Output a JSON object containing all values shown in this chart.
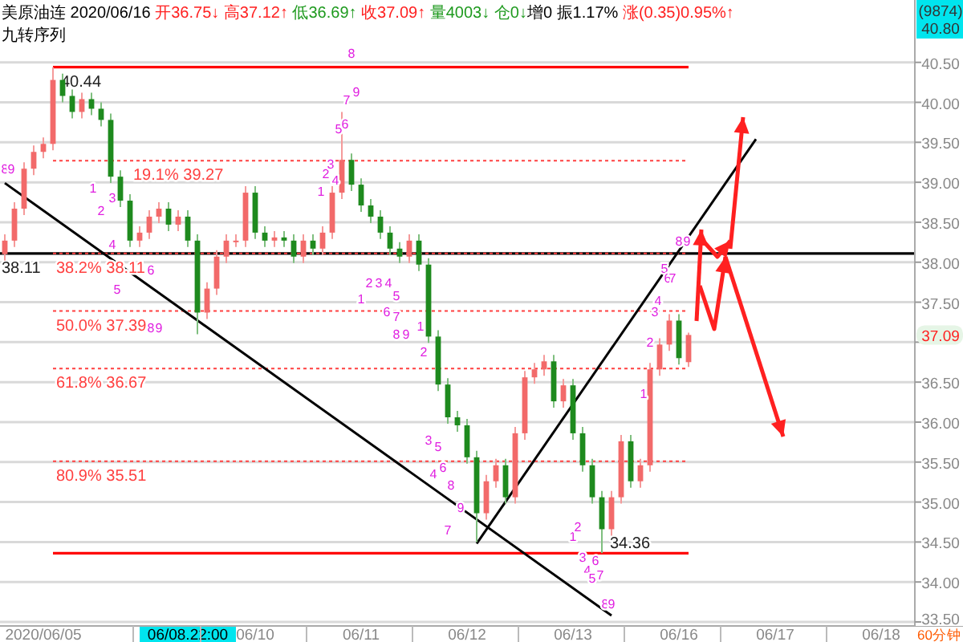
{
  "chart_data": {
    "type": "candlestick",
    "title": "美原油连",
    "subtitle": "九转序列",
    "grid": "y",
    "categories": [
      null,
      null,
      null,
      null,
      "2020/06/05",
      null,
      null,
      null,
      null,
      null,
      null,
      null,
      null,
      null,
      null,
      null,
      null,
      null,
      null,
      "06/08.22:00",
      null,
      null,
      null,
      null,
      null,
      null,
      "06/10",
      null,
      null,
      null,
      null,
      null,
      null,
      null,
      null,
      null,
      null,
      "06/11",
      null,
      null,
      null,
      null,
      null,
      null,
      null,
      null,
      null,
      null,
      "06/12",
      null,
      null,
      null,
      null,
      null,
      null,
      null,
      null,
      null,
      null,
      "06/13",
      null,
      null,
      null,
      null,
      null,
      null,
      null,
      null,
      null,
      null,
      "06/16",
      null,
      null,
      null,
      null,
      null,
      null,
      null,
      null,
      null,
      "06/17",
      null,
      null,
      null,
      null,
      null,
      null,
      null,
      null,
      null,
      null,
      "06/18",
      null,
      null,
      null
    ],
    "ohlc": [
      [
        38.1,
        38.35,
        38.02,
        38.27
      ],
      [
        38.27,
        38.75,
        38.19,
        38.67
      ],
      [
        38.67,
        39.25,
        38.59,
        39.17
      ],
      [
        39.17,
        39.46,
        39.09,
        39.38
      ],
      [
        39.38,
        39.56,
        39.3,
        39.48
      ],
      [
        39.48,
        40.44,
        39.4,
        40.28
      ],
      [
        40.28,
        40.36,
        40.0,
        40.08
      ],
      [
        40.08,
        40.16,
        39.8,
        39.88
      ],
      [
        39.88,
        40.12,
        39.8,
        40.04
      ],
      [
        40.04,
        40.12,
        39.84,
        39.92
      ],
      [
        39.92,
        40.0,
        39.7,
        39.78
      ],
      [
        39.78,
        39.86,
        38.99,
        39.07
      ],
      [
        39.07,
        39.15,
        38.69,
        38.77
      ],
      [
        38.77,
        38.85,
        38.19,
        38.27
      ],
      [
        38.27,
        38.45,
        38.19,
        38.37
      ],
      [
        38.37,
        38.65,
        38.29,
        38.57
      ],
      [
        38.57,
        38.75,
        38.49,
        38.67
      ],
      [
        38.67,
        38.75,
        38.39,
        38.47
      ],
      [
        38.47,
        38.65,
        38.39,
        38.57
      ],
      [
        38.57,
        38.65,
        38.19,
        38.27
      ],
      [
        38.27,
        38.35,
        37.1,
        37.37
      ],
      [
        37.37,
        37.75,
        37.29,
        37.67
      ],
      [
        37.67,
        38.15,
        37.59,
        38.07
      ],
      [
        38.07,
        38.35,
        37.99,
        38.27
      ],
      [
        38.27,
        38.35,
        38.19,
        38.27
      ],
      [
        38.27,
        38.95,
        38.19,
        38.87
      ],
      [
        38.87,
        38.95,
        38.29,
        38.37
      ],
      [
        38.37,
        38.45,
        38.19,
        38.27
      ],
      [
        38.27,
        38.39,
        38.19,
        38.31
      ],
      [
        38.31,
        38.39,
        38.19,
        38.27
      ],
      [
        38.27,
        38.35,
        37.99,
        38.07
      ],
      [
        38.07,
        38.35,
        37.99,
        38.27
      ],
      [
        38.27,
        38.35,
        38.09,
        38.17
      ],
      [
        38.17,
        38.45,
        38.09,
        38.37
      ],
      [
        38.37,
        38.95,
        38.29,
        38.87
      ],
      [
        38.87,
        39.88,
        38.79,
        39.28
      ],
      [
        39.28,
        39.36,
        38.89,
        38.97
      ],
      [
        38.97,
        39.05,
        38.63,
        38.71
      ],
      [
        38.71,
        38.79,
        38.49,
        38.57
      ],
      [
        38.57,
        38.65,
        38.29,
        38.37
      ],
      [
        38.37,
        38.45,
        38.09,
        38.17
      ],
      [
        38.17,
        38.25,
        37.99,
        38.07
      ],
      [
        38.07,
        38.35,
        37.99,
        38.27
      ],
      [
        38.27,
        38.35,
        37.89,
        37.97
      ],
      [
        37.97,
        38.05,
        36.99,
        37.07
      ],
      [
        37.07,
        37.15,
        36.39,
        36.47
      ],
      [
        36.47,
        36.55,
        35.98,
        36.06
      ],
      [
        36.06,
        36.14,
        35.88,
        35.96
      ],
      [
        35.96,
        36.04,
        35.48,
        35.56
      ],
      [
        35.56,
        35.64,
        34.5,
        34.86
      ],
      [
        34.86,
        35.34,
        34.78,
        35.26
      ],
      [
        35.26,
        35.54,
        35.18,
        35.46
      ],
      [
        35.46,
        35.54,
        34.98,
        35.06
      ],
      [
        35.06,
        35.94,
        34.98,
        35.86
      ],
      [
        35.86,
        36.64,
        35.78,
        36.56
      ],
      [
        36.56,
        36.74,
        36.48,
        36.66
      ],
      [
        36.66,
        36.84,
        36.58,
        36.76
      ],
      [
        36.76,
        36.84,
        36.18,
        36.26
      ],
      [
        36.26,
        36.54,
        36.18,
        36.46
      ],
      [
        36.46,
        36.54,
        35.78,
        35.86
      ],
      [
        35.86,
        35.94,
        35.38,
        35.46
      ],
      [
        35.46,
        35.54,
        34.98,
        35.06
      ],
      [
        35.06,
        35.14,
        34.36,
        34.66
      ],
      [
        34.66,
        35.14,
        34.58,
        35.06
      ],
      [
        35.06,
        35.84,
        34.98,
        35.76
      ],
      [
        35.76,
        35.84,
        35.18,
        35.26
      ],
      [
        35.26,
        35.54,
        35.18,
        35.46
      ],
      [
        35.46,
        36.74,
        35.38,
        36.66
      ],
      [
        36.66,
        37.05,
        36.58,
        36.97
      ],
      [
        36.97,
        37.35,
        36.89,
        37.27
      ],
      [
        37.27,
        37.35,
        36.72,
        36.8
      ],
      [
        36.75,
        37.12,
        36.69,
        37.09
      ],
      null,
      null,
      null,
      null,
      null,
      null,
      null,
      null,
      null,
      null,
      null,
      null,
      null,
      null,
      null,
      null,
      null,
      null,
      null,
      null,
      null,
      null,
      null
    ],
    "series": [
      {
        "type": "line",
        "color": "#000000",
        "values": [
          38.99,
          null,
          null,
          null,
          null,
          null,
          null,
          null,
          null,
          null,
          null,
          null,
          null,
          null,
          null,
          null,
          null,
          null,
          null,
          null,
          null,
          null,
          null,
          null,
          null,
          null,
          null,
          null,
          null,
          null,
          null,
          null,
          null,
          null,
          null,
          null,
          null,
          null,
          null,
          null,
          null,
          null,
          null,
          null,
          null,
          null,
          null,
          null,
          null,
          null,
          null,
          null,
          null,
          null,
          null,
          null,
          null,
          null,
          null,
          null,
          null,
          null,
          null,
          33.58,
          null,
          null,
          null,
          null,
          null,
          null,
          null,
          null,
          null,
          null,
          null,
          null,
          null,
          null,
          null,
          null,
          null,
          null,
          null,
          null,
          null,
          null,
          null,
          null,
          null,
          null,
          null,
          null,
          null,
          null,
          null
        ]
      },
      {
        "type": "line",
        "color": "#000000",
        "values": [
          null,
          null,
          null,
          null,
          null,
          null,
          null,
          null,
          null,
          null,
          null,
          null,
          null,
          null,
          null,
          null,
          null,
          null,
          null,
          null,
          null,
          null,
          null,
          null,
          null,
          null,
          null,
          null,
          null,
          null,
          null,
          null,
          null,
          null,
          null,
          null,
          null,
          null,
          null,
          null,
          null,
          null,
          null,
          null,
          null,
          null,
          null,
          null,
          null,
          34.48,
          null,
          null,
          null,
          null,
          null,
          null,
          null,
          null,
          null,
          null,
          null,
          null,
          null,
          null,
          null,
          null,
          null,
          null,
          null,
          null,
          null,
          null,
          null,
          null,
          null,
          null,
          null,
          null,
          39.54,
          null,
          null,
          null,
          null,
          null,
          null,
          null,
          null,
          null,
          null,
          null,
          null,
          null,
          null,
          null,
          null
        ]
      }
    ],
    "ylim": [
      33.45,
      41.28
    ],
    "yticks": [
      {
        "value": 33.5,
        "label": "33.50"
      },
      {
        "value": 34,
        "label": "34.00"
      },
      {
        "value": 34.5,
        "label": "34.50"
      },
      {
        "value": 35,
        "label": "35.00"
      },
      {
        "value": 35.5,
        "label": "35.50"
      },
      {
        "value": 36,
        "label": "36.00"
      },
      {
        "value": 36.5,
        "label": "36.50"
      },
      {
        "value": 37,
        "label": null
      },
      {
        "value": 37.5,
        "label": "37.50"
      },
      {
        "value": 38,
        "label": "38.00"
      },
      {
        "value": 38.5,
        "label": "38.50"
      },
      {
        "value": 39,
        "label": "39.00"
      },
      {
        "value": 39.5,
        "label": "39.50"
      },
      {
        "value": 40,
        "label": "40.00"
      },
      {
        "value": 40.5,
        "label": "40.50"
      }
    ],
    "ref_lines": [
      {
        "axis": "y",
        "value": 38.11,
        "label": "38.11",
        "color": "#000000",
        "line_style": "solid"
      },
      {
        "axis": "y",
        "value": 40.44,
        "label": "40.44",
        "color": "#ff0000",
        "line_style": "solid"
      },
      {
        "axis": "y",
        "value": 34.36,
        "label": "34.36",
        "color": "#ff0000",
        "line_style": "solid"
      },
      {
        "axis": "y",
        "value": 39.27,
        "label": "19.1% 39.27",
        "color": "#ff4040",
        "line_style": "dotted"
      },
      {
        "axis": "y",
        "value": 38.11,
        "label": "38.2% 38.11",
        "color": "#ff4040",
        "line_style": "dotted"
      },
      {
        "axis": "y",
        "value": 37.39,
        "label": "50.0% 37.39",
        "color": "#ff4040",
        "line_style": "dotted"
      },
      {
        "axis": "y",
        "value": 36.67,
        "label": "61.8% 36.67",
        "color": "#ff4040",
        "line_style": "dotted"
      },
      {
        "axis": "y",
        "value": 35.51,
        "label": "80.9% 35.51",
        "color": "#ff4040",
        "line_style": "dotted"
      }
    ],
    "annotations": [
      "2020/06/16",
      "开36.75↓",
      "高37.12↑",
      "低36.69↑",
      "收37.09↑",
      "量4003↓",
      "仓0↓",
      "增0",
      "振1.17%",
      "涨(0.35)0.95%↑",
      "(9874)",
      "40.80",
      "60分钟",
      {
        "text": "37.09",
        "y": 37.09
      },
      "8",
      "9",
      "1",
      "2",
      "3",
      "4",
      "5",
      "6",
      "8",
      "9",
      "8",
      "7",
      "9",
      "5",
      "6",
      "1",
      "2",
      "3",
      "4",
      "1",
      "2",
      "3",
      "4",
      "5",
      "6",
      "7",
      "8",
      "9",
      "1",
      "2",
      "3",
      "5",
      "4",
      "6",
      "8",
      "9",
      "7",
      "1",
      "2",
      "3",
      "6",
      "4",
      "5",
      "7",
      "8",
      "9",
      "1",
      "2",
      "3",
      "4",
      "5",
      "6",
      "7",
      "8",
      "9"
    ]
  }
}
